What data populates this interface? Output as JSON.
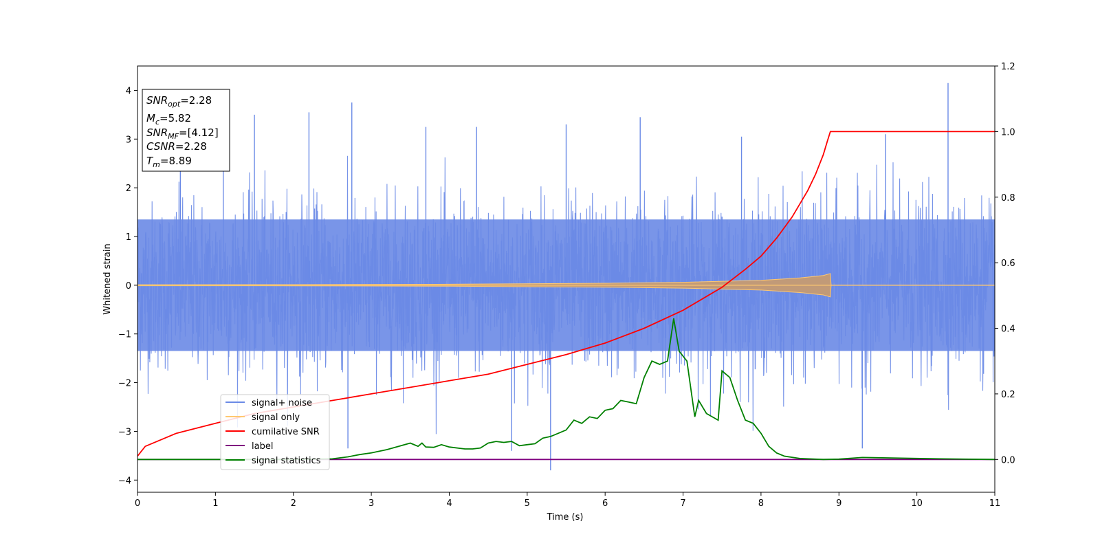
{
  "chart_data": {
    "type": "line",
    "xlabel": "Time (s)",
    "ylabel": "Whitened strain",
    "xlim": [
      0,
      11
    ],
    "ylim_left": [
      -4.25,
      4.5
    ],
    "ylim_right": [
      -0.1,
      1.2
    ],
    "x_ticks": [
      "0",
      "1",
      "2",
      "3",
      "4",
      "5",
      "6",
      "7",
      "8",
      "9",
      "10",
      "11"
    ],
    "y_left_ticks": [
      "4",
      "3",
      "2",
      "1",
      "0",
      "−1",
      "−2",
      "−3",
      "−4"
    ],
    "y_right_ticks": [
      "1.2",
      "1.0",
      "0.8",
      "0.6",
      "0.4",
      "0.2",
      "0.0"
    ],
    "info_box": {
      "snr_opt": "SNR_opt=2.28",
      "mc": "M_c=5.82",
      "snr_mf": "SNR_MF=[4.12]",
      "csnr": "CSNR=2.28",
      "tm": "T_m=8.89"
    },
    "legend": {
      "signal_noise": "signal+ noise",
      "signal_only": "signal only",
      "cumulative_snr": "cumilative SNR",
      "label": "label",
      "signal_statistics": "signal statistics"
    },
    "colors": {
      "signal_noise": "#6a8ae6",
      "signal_only": "#ffc870",
      "signal_only_overlay": "#c19a78",
      "cumulative_snr": "#ff0000",
      "label": "#800080",
      "signal_statistics": "#008000"
    },
    "series": [
      {
        "name": "cumilative SNR",
        "axis": "right",
        "x": [
          0,
          0.1,
          0.5,
          1,
          1.5,
          2,
          2.5,
          3,
          3.5,
          4,
          4.5,
          5,
          5.5,
          6,
          6.5,
          7,
          7.5,
          7.8,
          8,
          8.2,
          8.4,
          8.6,
          8.7,
          8.8,
          8.85,
          8.89,
          9,
          10,
          11
        ],
        "y": [
          0.01,
          0.04,
          0.08,
          0.11,
          0.14,
          0.16,
          0.18,
          0.2,
          0.22,
          0.24,
          0.26,
          0.29,
          0.32,
          0.355,
          0.4,
          0.455,
          0.525,
          0.58,
          0.62,
          0.675,
          0.74,
          0.82,
          0.87,
          0.93,
          0.97,
          1.0,
          1.0,
          1.0,
          1.0
        ]
      },
      {
        "name": "signal statistics",
        "axis": "right",
        "x": [
          0,
          1,
          2,
          2.5,
          2.7,
          2.85,
          3,
          3.2,
          3.35,
          3.5,
          3.6,
          3.65,
          3.7,
          3.8,
          3.9,
          4.0,
          4.2,
          4.3,
          4.4,
          4.5,
          4.6,
          4.7,
          4.8,
          4.9,
          5.0,
          5.1,
          5.2,
          5.3,
          5.4,
          5.5,
          5.6,
          5.7,
          5.8,
          5.9,
          6.0,
          6.1,
          6.2,
          6.3,
          6.4,
          6.5,
          6.6,
          6.7,
          6.8,
          6.88,
          6.95,
          7.05,
          7.15,
          7.2,
          7.3,
          7.45,
          7.5,
          7.6,
          7.7,
          7.8,
          7.9,
          8.0,
          8.1,
          8.2,
          8.3,
          8.5,
          8.8,
          9.0,
          9.3,
          9.8,
          10.3,
          11
        ],
        "y": [
          0.0,
          0.0,
          0.0,
          0.002,
          0.008,
          0.015,
          0.02,
          0.03,
          0.04,
          0.05,
          0.04,
          0.05,
          0.038,
          0.037,
          0.045,
          0.038,
          0.032,
          0.032,
          0.035,
          0.05,
          0.055,
          0.052,
          0.055,
          0.042,
          0.045,
          0.048,
          0.065,
          0.07,
          0.08,
          0.09,
          0.12,
          0.11,
          0.13,
          0.125,
          0.15,
          0.155,
          0.18,
          0.175,
          0.17,
          0.25,
          0.3,
          0.29,
          0.3,
          0.43,
          0.33,
          0.3,
          0.13,
          0.18,
          0.14,
          0.12,
          0.27,
          0.25,
          0.18,
          0.12,
          0.11,
          0.08,
          0.04,
          0.02,
          0.01,
          0.003,
          0.0,
          0.001,
          0.006,
          0.004,
          0.002,
          0.0
        ]
      },
      {
        "name": "label",
        "axis": "right",
        "x": [
          0,
          11
        ],
        "y": [
          0,
          0
        ]
      },
      {
        "name": "signal only",
        "axis": "left",
        "description_values": "chirp envelope amplitude",
        "x": [
          0,
          2,
          4,
          6,
          7,
          8,
          8.5,
          8.8,
          8.89,
          8.9,
          11
        ],
        "y": [
          0.01,
          0.012,
          0.02,
          0.04,
          0.06,
          0.1,
          0.15,
          0.2,
          0.24,
          0.0,
          0.0
        ]
      },
      {
        "name": "signal+ noise",
        "axis": "left",
        "description_values": "dense whitened noise, typical range ±1.5 with spikes",
        "spikes": [
          {
            "x": 0.55,
            "y": 2.9
          },
          {
            "x": 1.1,
            "y": 2.95
          },
          {
            "x": 1.5,
            "y": 3.5
          },
          {
            "x": 2.2,
            "y": 3.55
          },
          {
            "x": 2.75,
            "y": 3.75
          },
          {
            "x": 3.7,
            "y": 3.25
          },
          {
            "x": 4.35,
            "y": 3.25
          },
          {
            "x": 5.5,
            "y": 3.3
          },
          {
            "x": 6.45,
            "y": 3.45
          },
          {
            "x": 7.75,
            "y": 3.05
          },
          {
            "x": 9.6,
            "y": 3.1
          },
          {
            "x": 10.4,
            "y": 4.15
          },
          {
            "x": 5.3,
            "y": -3.8
          },
          {
            "x": 2.7,
            "y": -3.35
          },
          {
            "x": 9.3,
            "y": -3.35
          },
          {
            "x": 4.8,
            "y": -3.4
          }
        ]
      }
    ]
  }
}
